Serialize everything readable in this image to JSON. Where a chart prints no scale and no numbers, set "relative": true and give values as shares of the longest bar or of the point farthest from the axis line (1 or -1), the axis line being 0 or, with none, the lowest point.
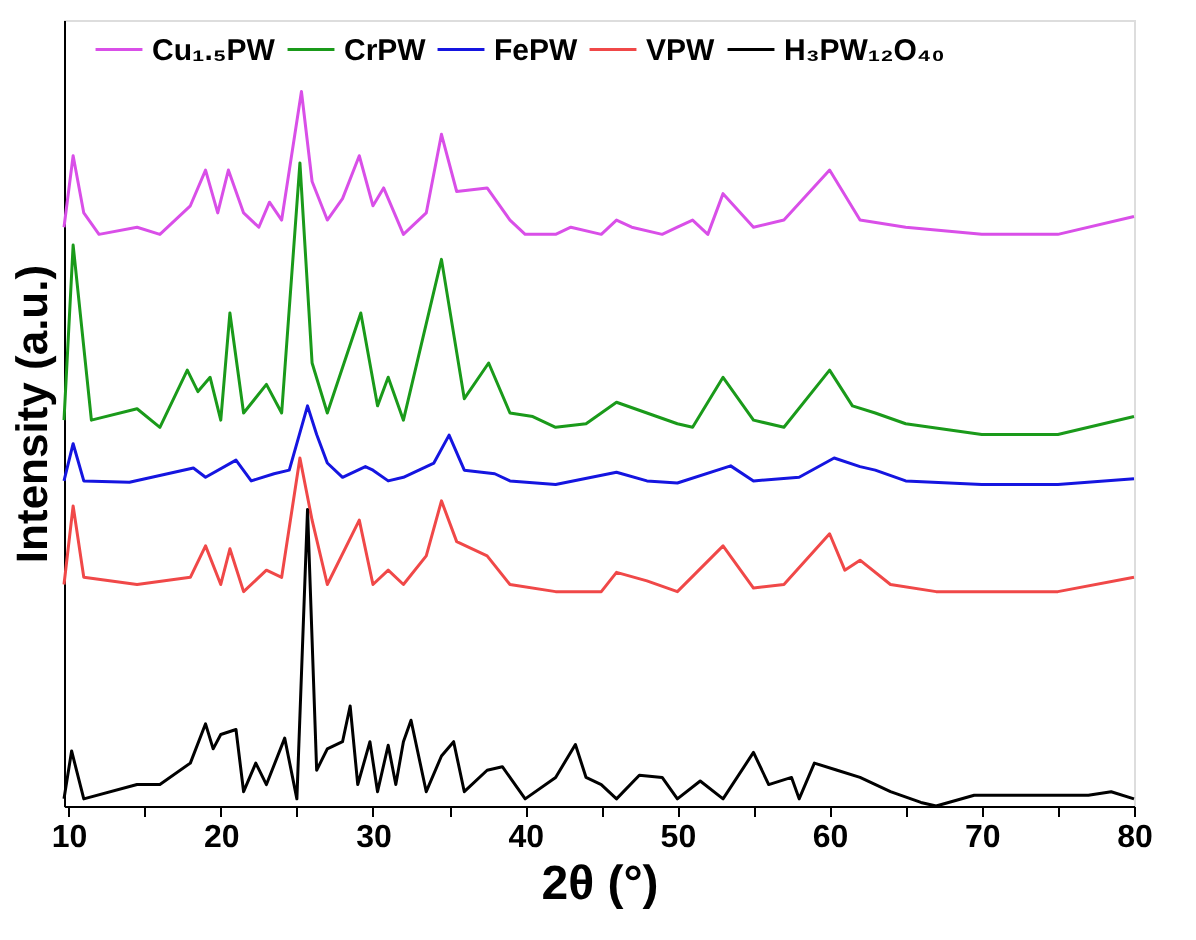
{
  "chart_data": {
    "type": "line",
    "xlabel": "2θ (°)",
    "ylabel": "Intensity (a.u.)",
    "relative": true,
    "xlim": [
      9.7,
      80
    ],
    "xticks": [
      10,
      {
        "value": 15,
        "label": null
      },
      20,
      {
        "value": 25,
        "label": null
      },
      30,
      {
        "value": 35,
        "label": null
      },
      40,
      {
        "value": 45,
        "label": null
      },
      50,
      {
        "value": 55,
        "label": null
      },
      60,
      {
        "value": 65,
        "label": null
      },
      70,
      {
        "value": 75,
        "label": null
      },
      80
    ],
    "legend": "top",
    "grid": false,
    "marker": "none",
    "line_style": "solid",
    "series": [
      {
        "name": "Cu₁.₅PW",
        "color": "#d94fe8",
        "x": [
          9.7,
          10.3,
          11,
          12,
          14.5,
          16,
          18,
          19,
          19.8,
          20.5,
          21.5,
          22.5,
          23.2,
          24,
          25.3,
          26,
          27,
          28,
          29.1,
          30,
          30.7,
          32,
          33.5,
          34.5,
          35.5,
          37.5,
          39,
          40,
          42,
          43,
          45,
          46,
          47,
          49,
          50,
          51,
          52,
          53,
          55,
          57,
          60,
          62,
          65,
          70,
          75,
          80
        ],
        "values": [
          0.81,
          0.91,
          0.83,
          0.8,
          0.81,
          0.8,
          0.84,
          0.89,
          0.83,
          0.89,
          0.83,
          0.81,
          0.845,
          0.82,
          1.0,
          0.874,
          0.82,
          0.85,
          0.91,
          0.84,
          0.865,
          0.8,
          0.83,
          0.94,
          0.86,
          0.865,
          0.82,
          0.8,
          0.8,
          0.81,
          0.8,
          0.82,
          0.81,
          0.8,
          0.81,
          0.82,
          0.8,
          0.857,
          0.81,
          0.82,
          0.89,
          0.82,
          0.81,
          0.8,
          0.8,
          0.825
        ]
      },
      {
        "name": "CrPW",
        "color": "#1a9a1a",
        "x": [
          9.7,
          10.3,
          11.5,
          14.5,
          16,
          17.8,
          18.5,
          19.3,
          20,
          20.6,
          21.5,
          23,
          24,
          25.2,
          26,
          27,
          29.2,
          30.3,
          31,
          32,
          34.5,
          36,
          37.6,
          39,
          40.5,
          42,
          44,
          46,
          48,
          50,
          51,
          53,
          55,
          57,
          60,
          61.5,
          63,
          65,
          70,
          75,
          80
        ],
        "values": [
          0.54,
          0.785,
          0.54,
          0.556,
          0.53,
          0.61,
          0.58,
          0.6,
          0.54,
          0.69,
          0.55,
          0.59,
          0.55,
          0.9,
          0.62,
          0.55,
          0.69,
          0.56,
          0.6,
          0.54,
          0.765,
          0.57,
          0.62,
          0.55,
          0.545,
          0.53,
          0.535,
          0.565,
          0.55,
          0.535,
          0.53,
          0.6,
          0.54,
          0.53,
          0.61,
          0.56,
          0.55,
          0.535,
          0.52,
          0.52,
          0.545
        ]
      },
      {
        "name": "FePW",
        "color": "#1515e0",
        "x": [
          9.7,
          10.3,
          11,
          14,
          18.2,
          19,
          21,
          22,
          23.5,
          24.5,
          25.7,
          26.3,
          27,
          28,
          29.5,
          30,
          31,
          32,
          34,
          35,
          36,
          38,
          39,
          42,
          46,
          48,
          50,
          53.5,
          55,
          58,
          60.3,
          62,
          63,
          65,
          70,
          75,
          80
        ],
        "values": [
          0.455,
          0.507,
          0.455,
          0.453,
          0.473,
          0.46,
          0.484,
          0.455,
          0.465,
          0.47,
          0.56,
          0.52,
          0.48,
          0.46,
          0.475,
          0.47,
          0.455,
          0.46,
          0.48,
          0.519,
          0.47,
          0.465,
          0.455,
          0.45,
          0.467,
          0.455,
          0.452,
          0.476,
          0.455,
          0.46,
          0.487,
          0.475,
          0.47,
          0.455,
          0.45,
          0.45,
          0.458
        ]
      },
      {
        "name": "VPW",
        "color": "#f04848",
        "x": [
          9.7,
          10.3,
          11,
          14.5,
          18,
          19,
          20,
          20.6,
          21.5,
          23,
          24,
          25.2,
          26,
          27,
          29.1,
          30,
          31,
          32,
          33.5,
          34.5,
          35.5,
          37.5,
          39,
          42,
          45,
          46,
          48,
          50,
          53,
          55,
          57,
          60,
          61,
          62,
          64,
          67,
          70,
          75,
          80
        ],
        "values": [
          0.31,
          0.42,
          0.32,
          0.31,
          0.32,
          0.364,
          0.31,
          0.36,
          0.3,
          0.33,
          0.32,
          0.487,
          0.4,
          0.31,
          0.4,
          0.31,
          0.33,
          0.31,
          0.35,
          0.427,
          0.37,
          0.35,
          0.31,
          0.3,
          0.3,
          0.327,
          0.315,
          0.3,
          0.364,
          0.305,
          0.31,
          0.381,
          0.33,
          0.344,
          0.31,
          0.3,
          0.3,
          0.3,
          0.32
        ]
      },
      {
        "name": "H₃PW₁₂O₄₀",
        "color": "#000000",
        "x": [
          9.7,
          10.2,
          11,
          14.5,
          16,
          18,
          19,
          19.5,
          20,
          21,
          21.5,
          22.3,
          23,
          24.2,
          25,
          25.7,
          26.3,
          27,
          28,
          28.5,
          29,
          29.8,
          30.3,
          31,
          31.5,
          32,
          32.5,
          33.5,
          34.5,
          35.3,
          36,
          37.5,
          38.5,
          40,
          42,
          43.3,
          44,
          45,
          46,
          47.5,
          49,
          50,
          51.5,
          53,
          55,
          56,
          57.5,
          58,
          59,
          60.5,
          62,
          64,
          66,
          67,
          69.5,
          73.5,
          77,
          78.5,
          80
        ],
        "values": [
          0.01,
          0.077,
          0.01,
          0.03,
          0.03,
          0.06,
          0.115,
          0.08,
          0.1,
          0.107,
          0.02,
          0.06,
          0.03,
          0.095,
          0.01,
          0.415,
          0.05,
          0.08,
          0.09,
          0.14,
          0.03,
          0.09,
          0.02,
          0.085,
          0.03,
          0.09,
          0.12,
          0.02,
          0.07,
          0.09,
          0.02,
          0.05,
          0.055,
          0.01,
          0.04,
          0.086,
          0.04,
          0.03,
          0.01,
          0.043,
          0.04,
          0.01,
          0.035,
          0.01,
          0.075,
          0.03,
          0.04,
          0.01,
          0.06,
          0.05,
          0.04,
          0.02,
          0.005,
          0.0,
          0.015,
          0.015,
          0.015,
          0.02,
          0.01
        ]
      }
    ]
  }
}
